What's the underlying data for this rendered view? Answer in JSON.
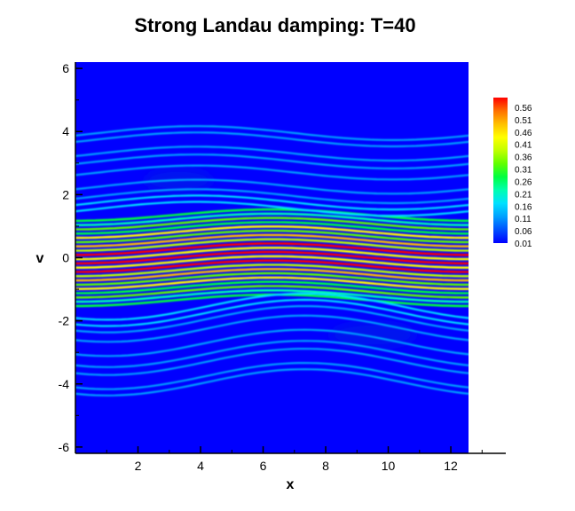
{
  "chart_data": {
    "type": "heatmap",
    "title": "Strong Landau damping: T=40",
    "xlabel": "x",
    "ylabel": "v",
    "xlim": [
      0,
      12.566
    ],
    "ylim": [
      -6.2,
      6.2
    ],
    "plot_area_xmax": 13.5,
    "x_ticks": [
      2,
      4,
      6,
      8,
      10,
      12
    ],
    "y_ticks": [
      -6,
      -4,
      -2,
      0,
      2,
      4,
      6
    ],
    "colorbar": {
      "levels": [
        0.01,
        0.06,
        0.11,
        0.16,
        0.21,
        0.26,
        0.31,
        0.36,
        0.41,
        0.46,
        0.51,
        0.56
      ],
      "labels": [
        "0.56",
        "0.51",
        "0.46",
        "0.41",
        "0.36",
        "0.31",
        "0.26",
        "0.21",
        "0.16",
        "0.11",
        "0.06",
        "0.01"
      ],
      "colors": [
        "#0000ff",
        "#0050ff",
        "#00a0ff",
        "#00e0ff",
        "#00ffb0",
        "#00ff40",
        "#60ff00",
        "#c0ff00",
        "#ffff00",
        "#ffc000",
        "#ff7000",
        "#ff0000"
      ]
    },
    "background_color": "#0000ff",
    "description_value_max": 0.56
  }
}
